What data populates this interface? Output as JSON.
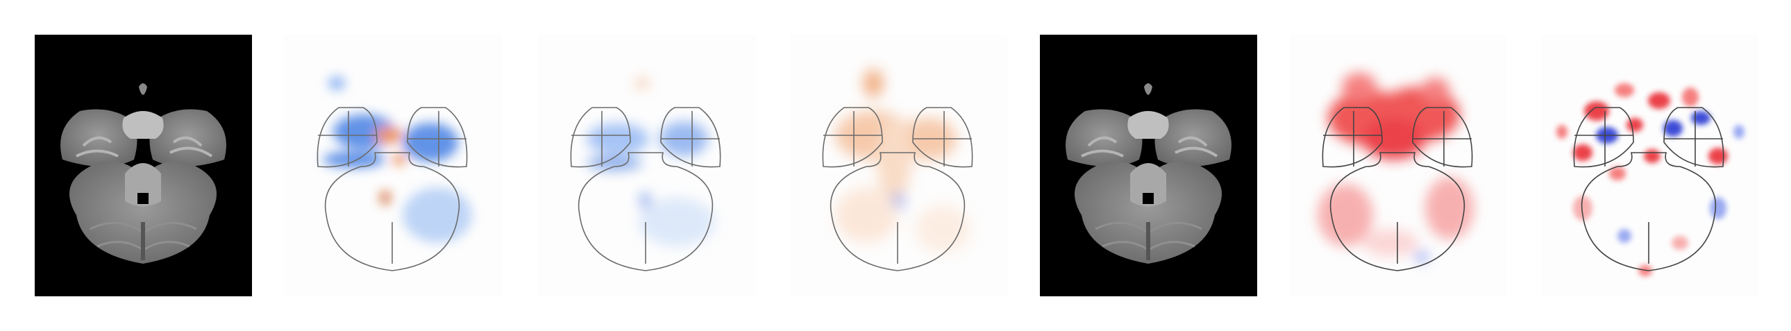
{
  "figure": {
    "panels": [
      {
        "id": "anatomy-1",
        "kind": "anatomy",
        "background": "#000000"
      },
      {
        "id": "map-blue-1",
        "kind": "overlay",
        "colormap": "blue-orange",
        "dominant": "blue"
      },
      {
        "id": "map-blue-2",
        "kind": "overlay",
        "colormap": "blue-orange",
        "dominant": "blue"
      },
      {
        "id": "map-orange",
        "kind": "overlay",
        "colormap": "blue-orange",
        "dominant": "orange"
      },
      {
        "id": "anatomy-2",
        "kind": "anatomy",
        "background": "#000000"
      },
      {
        "id": "map-red",
        "kind": "overlay",
        "colormap": "red-blue",
        "dominant": "red"
      },
      {
        "id": "map-noise",
        "kind": "overlay",
        "colormap": "red-blue",
        "dominant": "mixed"
      }
    ],
    "colors": {
      "blue": "#2f6fe0",
      "orange": "#e8742a",
      "red": "#e8202a",
      "deep_blue": "#1a2fd0",
      "outline": "#6b6b6b"
    }
  }
}
